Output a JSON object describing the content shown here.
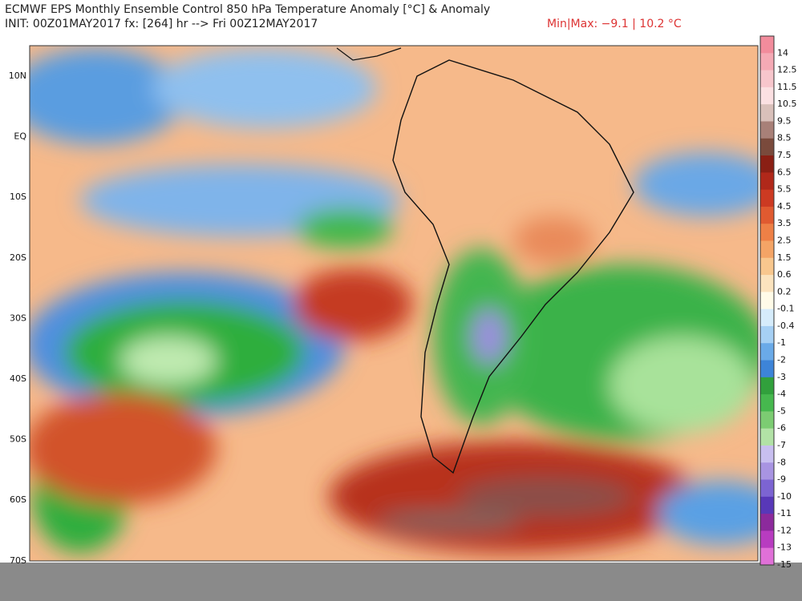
{
  "header": {
    "title": "ECMWF EPS Monthly Ensemble Control 850 hPa Temperature Anomaly [°C] & Anomaly",
    "init": "INIT: 00Z01MAY2017 fx: [264] hr --> Fri 00Z12MAY2017",
    "minmax": "Min|Max: −9.1 | 10.2 °C"
  },
  "latitudes": [
    "10N",
    "EQ",
    "10S",
    "20S",
    "30S",
    "40S",
    "50S",
    "60S",
    "70S"
  ],
  "colorbar": {
    "labels": [
      "14",
      "12.5",
      "11.5",
      "10.5",
      "9.5",
      "8.5",
      "7.5",
      "6.5",
      "5.5",
      "4.5",
      "3.5",
      "2.5",
      "1.5",
      "0.6",
      "0.2",
      "-0.1",
      "-0.4",
      "-1",
      "-2",
      "-3",
      "-4",
      "-5",
      "-6",
      "-7",
      "-8",
      "-9",
      "-10",
      "-11",
      "-12",
      "-13",
      "-15"
    ]
  }
}
